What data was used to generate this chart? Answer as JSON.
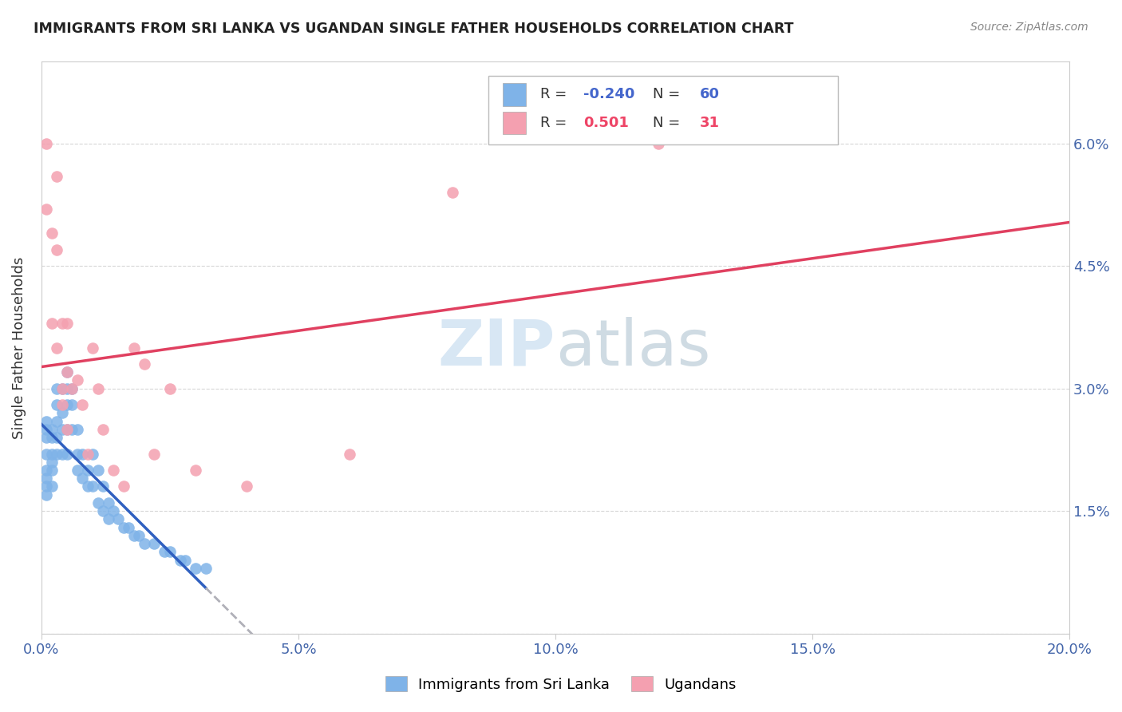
{
  "title": "IMMIGRANTS FROM SRI LANKA VS UGANDAN SINGLE FATHER HOUSEHOLDS CORRELATION CHART",
  "source": "Source: ZipAtlas.com",
  "ylabel": "Single Father Households",
  "xlim": [
    0.0,
    0.2
  ],
  "ylim": [
    0.0,
    0.07
  ],
  "xticks": [
    0.0,
    0.05,
    0.1,
    0.15,
    0.2
  ],
  "xtick_labels": [
    "0.0%",
    "5.0%",
    "10.0%",
    "15.0%",
    "20.0%"
  ],
  "yticks": [
    0.0,
    0.015,
    0.03,
    0.045,
    0.06
  ],
  "ytick_labels": [
    "",
    "1.5%",
    "3.0%",
    "4.5%",
    "6.0%"
  ],
  "legend1_label": "Immigrants from Sri Lanka",
  "legend2_label": "Ugandans",
  "R1": -0.24,
  "N1": 60,
  "R2": 0.501,
  "N2": 31,
  "color_blue": "#7FB3E8",
  "color_pink": "#F4A0B0",
  "color_line_blue": "#3060C0",
  "color_line_pink": "#E04060",
  "color_line_dashed": "#B0B0B8",
  "watermark_zip": "ZIP",
  "watermark_atlas": "atlas",
  "blue_x": [
    0.001,
    0.001,
    0.001,
    0.001,
    0.001,
    0.001,
    0.001,
    0.001,
    0.002,
    0.002,
    0.002,
    0.002,
    0.002,
    0.002,
    0.003,
    0.003,
    0.003,
    0.003,
    0.003,
    0.004,
    0.004,
    0.004,
    0.004,
    0.005,
    0.005,
    0.005,
    0.005,
    0.005,
    0.006,
    0.006,
    0.006,
    0.007,
    0.007,
    0.007,
    0.008,
    0.008,
    0.009,
    0.009,
    0.01,
    0.01,
    0.011,
    0.011,
    0.012,
    0.012,
    0.013,
    0.013,
    0.014,
    0.015,
    0.016,
    0.017,
    0.018,
    0.019,
    0.02,
    0.022,
    0.024,
    0.025,
    0.027,
    0.028,
    0.03,
    0.032
  ],
  "blue_y": [
    0.026,
    0.025,
    0.024,
    0.022,
    0.02,
    0.019,
    0.018,
    0.017,
    0.025,
    0.024,
    0.022,
    0.021,
    0.02,
    0.018,
    0.03,
    0.028,
    0.026,
    0.024,
    0.022,
    0.03,
    0.027,
    0.025,
    0.022,
    0.032,
    0.03,
    0.028,
    0.025,
    0.022,
    0.03,
    0.028,
    0.025,
    0.025,
    0.022,
    0.02,
    0.022,
    0.019,
    0.02,
    0.018,
    0.022,
    0.018,
    0.02,
    0.016,
    0.018,
    0.015,
    0.016,
    0.014,
    0.015,
    0.014,
    0.013,
    0.013,
    0.012,
    0.012,
    0.011,
    0.011,
    0.01,
    0.01,
    0.009,
    0.009,
    0.008,
    0.008
  ],
  "pink_x": [
    0.001,
    0.001,
    0.002,
    0.002,
    0.003,
    0.003,
    0.003,
    0.004,
    0.004,
    0.004,
    0.005,
    0.005,
    0.005,
    0.006,
    0.007,
    0.008,
    0.009,
    0.01,
    0.011,
    0.012,
    0.014,
    0.016,
    0.018,
    0.02,
    0.022,
    0.025,
    0.03,
    0.04,
    0.06,
    0.08,
    0.12
  ],
  "pink_y": [
    0.06,
    0.052,
    0.049,
    0.038,
    0.056,
    0.047,
    0.035,
    0.038,
    0.03,
    0.028,
    0.038,
    0.032,
    0.025,
    0.03,
    0.031,
    0.028,
    0.022,
    0.035,
    0.03,
    0.025,
    0.02,
    0.018,
    0.035,
    0.033,
    0.022,
    0.03,
    0.02,
    0.018,
    0.022,
    0.054,
    0.06
  ]
}
